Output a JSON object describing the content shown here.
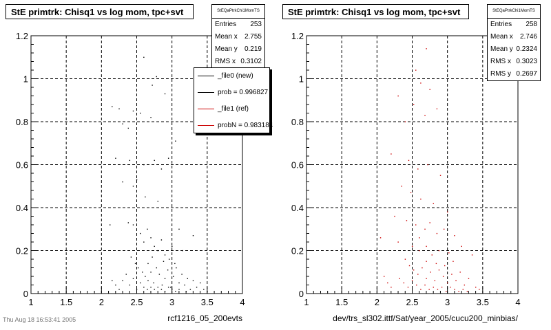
{
  "chart_data": [
    {
      "type": "scatter",
      "title": "StE primtrk: Chisq1 vs log mom, tpc+svt",
      "xlabel": "rcf1216_05_200evts",
      "ylabel": "",
      "xlim": [
        1,
        4
      ],
      "ylim": [
        0,
        1.2
      ],
      "x_ticks": [
        "1",
        "1.5",
        "2",
        "2.5",
        "3",
        "3.5",
        "4"
      ],
      "y_ticks": [
        "0",
        "0.2",
        "0.4",
        "0.6",
        "0.8",
        "1",
        "1.2"
      ],
      "grid": true,
      "marker_color": "#000000",
      "stats": {
        "name": "StEQaPtrkChi1MomTS",
        "rows": [
          {
            "label": "Entries",
            "value": "253"
          },
          {
            "label": "Mean x",
            "value": "2.755"
          },
          {
            "label": "Mean y",
            "value": "0.219"
          },
          {
            "label": "RMS x",
            "value": "0.3102"
          }
        ]
      },
      "legend": {
        "placement": "right-middle",
        "entries": [
          {
            "label": "_file0 (new)",
            "color": "#000000"
          },
          {
            "label": "prob = 0.996827",
            "color": "#000000"
          },
          {
            "label": "_file1 (ref)",
            "color": "#cc0000"
          },
          {
            "label": "probN = 0.983184",
            "color": "#cc0000"
          }
        ]
      },
      "points": [
        [
          2.6,
          1.1
        ],
        [
          2.72,
          0.97
        ],
        [
          2.78,
          1.01
        ],
        [
          2.9,
          0.93
        ],
        [
          2.15,
          0.87
        ],
        [
          2.25,
          0.86
        ],
        [
          2.45,
          0.85
        ],
        [
          2.55,
          0.84
        ],
        [
          2.7,
          0.82
        ],
        [
          2.3,
          0.79
        ],
        [
          2.38,
          0.77
        ],
        [
          2.2,
          0.63
        ],
        [
          2.4,
          0.62
        ],
        [
          2.6,
          0.6
        ],
        [
          2.75,
          0.62
        ],
        [
          2.85,
          0.58
        ],
        [
          2.95,
          0.63
        ],
        [
          2.3,
          0.52
        ],
        [
          2.45,
          0.5
        ],
        [
          2.5,
          0.53
        ],
        [
          2.62,
          0.45
        ],
        [
          2.8,
          0.43
        ],
        [
          3.05,
          0.71
        ],
        [
          2.12,
          0.32
        ],
        [
          2.38,
          0.33
        ],
        [
          2.45,
          0.32
        ],
        [
          2.55,
          0.28
        ],
        [
          2.6,
          0.24
        ],
        [
          2.65,
          0.3
        ],
        [
          2.7,
          0.26
        ],
        [
          2.75,
          0.22
        ],
        [
          2.8,
          0.2
        ],
        [
          2.85,
          0.25
        ],
        [
          2.9,
          0.18
        ],
        [
          3.0,
          0.22
        ],
        [
          3.1,
          0.3
        ],
        [
          3.15,
          0.2
        ],
        [
          3.3,
          0.27
        ],
        [
          2.42,
          0.17
        ],
        [
          2.48,
          0.14
        ],
        [
          2.52,
          0.12
        ],
        [
          2.58,
          0.1
        ],
        [
          2.62,
          0.08
        ],
        [
          2.66,
          0.06
        ],
        [
          2.7,
          0.1
        ],
        [
          2.74,
          0.05
        ],
        [
          2.78,
          0.12
        ],
        [
          2.82,
          0.09
        ],
        [
          2.86,
          0.04
        ],
        [
          2.9,
          0.07
        ],
        [
          2.94,
          0.11
        ],
        [
          2.98,
          0.03
        ],
        [
          3.02,
          0.08
        ],
        [
          3.06,
          0.12
        ],
        [
          3.1,
          0.05
        ],
        [
          3.14,
          0.09
        ],
        [
          3.18,
          0.04
        ],
        [
          3.22,
          0.07
        ],
        [
          3.26,
          0.02
        ],
        [
          3.3,
          0.06
        ],
        [
          2.3,
          0.06
        ],
        [
          2.35,
          0.09
        ],
        [
          2.4,
          0.04
        ],
        [
          2.45,
          0.07
        ],
        [
          2.5,
          0.02
        ],
        [
          2.55,
          0.05
        ],
        [
          2.6,
          0.03
        ],
        [
          2.65,
          0.02
        ],
        [
          2.7,
          0.03
        ],
        [
          2.75,
          0.02
        ],
        [
          2.8,
          0.03
        ],
        [
          2.85,
          0.02
        ],
        [
          2.9,
          0.01
        ],
        [
          2.95,
          0.03
        ],
        [
          3.0,
          0.02
        ],
        [
          3.05,
          0.01
        ],
        [
          3.1,
          0.02
        ],
        [
          3.2,
          0.01
        ],
        [
          3.35,
          0.03
        ],
        [
          3.4,
          0.05
        ],
        [
          3.45,
          0.02
        ],
        [
          2.25,
          0.02
        ],
        [
          2.2,
          0.04
        ],
        [
          2.15,
          0.06
        ],
        [
          3.5,
          0.01
        ],
        [
          2.66,
          0.14
        ],
        [
          2.72,
          0.17
        ],
        [
          2.88,
          0.15
        ],
        [
          2.96,
          0.16
        ],
        [
          3.04,
          0.14
        ]
      ]
    },
    {
      "type": "scatter",
      "title": "StE primtrk: Chisq1 vs log mom, tpc+svt",
      "xlabel": "dev/trs_sl302.ittf/Sat/year_2005/cucu200_minbias/",
      "ylabel": "",
      "xlim": [
        1,
        4
      ],
      "ylim": [
        0,
        1.2
      ],
      "x_ticks": [
        "1",
        "1.5",
        "2",
        "2.5",
        "3",
        "3.5",
        "4"
      ],
      "y_ticks": [
        "0",
        "0.2",
        "0.4",
        "0.6",
        "0.8",
        "1",
        "1.2"
      ],
      "grid": true,
      "marker_color": "#cc0000",
      "stats": {
        "name": "StEQaPtrkChi1MomTS",
        "rows": [
          {
            "label": "Entries",
            "value": "258"
          },
          {
            "label": "Mean x",
            "value": "2.746"
          },
          {
            "label": "Mean y",
            "value": "0.2324"
          },
          {
            "label": "RMS x",
            "value": "0.3023"
          },
          {
            "label": "RMS y",
            "value": "0.2697"
          }
        ]
      },
      "points": [
        [
          2.7,
          1.14
        ],
        [
          2.55,
          1.04
        ],
        [
          2.62,
          0.98
        ],
        [
          2.75,
          0.95
        ],
        [
          2.3,
          0.92
        ],
        [
          2.52,
          0.88
        ],
        [
          2.68,
          0.83
        ],
        [
          2.85,
          0.86
        ],
        [
          2.4,
          0.8
        ],
        [
          2.2,
          0.65
        ],
        [
          2.45,
          0.62
        ],
        [
          2.58,
          0.58
        ],
        [
          2.72,
          0.6
        ],
        [
          2.9,
          0.55
        ],
        [
          2.35,
          0.5
        ],
        [
          2.48,
          0.47
        ],
        [
          2.62,
          0.44
        ],
        [
          2.8,
          0.42
        ],
        [
          3.0,
          0.38
        ],
        [
          2.25,
          0.36
        ],
        [
          2.42,
          0.34
        ],
        [
          2.55,
          0.32
        ],
        [
          2.68,
          0.3
        ],
        [
          2.75,
          0.33
        ],
        [
          2.85,
          0.28
        ],
        [
          2.95,
          0.3
        ],
        [
          3.1,
          0.27
        ],
        [
          2.05,
          0.26
        ],
        [
          2.3,
          0.24
        ],
        [
          2.5,
          0.22
        ],
        [
          2.6,
          0.2
        ],
        [
          2.7,
          0.22
        ],
        [
          2.78,
          0.18
        ],
        [
          2.88,
          0.2
        ],
        [
          3.02,
          0.19
        ],
        [
          3.2,
          0.22
        ],
        [
          3.35,
          0.18
        ],
        [
          2.4,
          0.16
        ],
        [
          2.46,
          0.13
        ],
        [
          2.52,
          0.11
        ],
        [
          2.58,
          0.09
        ],
        [
          2.64,
          0.12
        ],
        [
          2.7,
          0.07
        ],
        [
          2.76,
          0.1
        ],
        [
          2.82,
          0.06
        ],
        [
          2.88,
          0.11
        ],
        [
          2.94,
          0.08
        ],
        [
          3.0,
          0.05
        ],
        [
          3.06,
          0.09
        ],
        [
          3.12,
          0.06
        ],
        [
          3.18,
          0.1
        ],
        [
          3.24,
          0.04
        ],
        [
          3.3,
          0.07
        ],
        [
          2.32,
          0.07
        ],
        [
          2.38,
          0.05
        ],
        [
          2.44,
          0.03
        ],
        [
          2.5,
          0.06
        ],
        [
          2.56,
          0.04
        ],
        [
          2.62,
          0.02
        ],
        [
          2.68,
          0.04
        ],
        [
          2.74,
          0.02
        ],
        [
          2.8,
          0.03
        ],
        [
          2.86,
          0.02
        ],
        [
          2.92,
          0.03
        ],
        [
          2.98,
          0.01
        ],
        [
          3.04,
          0.03
        ],
        [
          3.1,
          0.02
        ],
        [
          3.16,
          0.01
        ],
        [
          3.22,
          0.02
        ],
        [
          3.28,
          0.01
        ],
        [
          3.4,
          0.03
        ],
        [
          3.45,
          0.02
        ],
        [
          2.2,
          0.03
        ],
        [
          2.15,
          0.05
        ],
        [
          2.1,
          0.08
        ],
        [
          2.7,
          0.15
        ],
        [
          2.84,
          0.14
        ],
        [
          2.96,
          0.13
        ],
        [
          3.08,
          0.15
        ],
        [
          2.6,
          0.26
        ]
      ]
    }
  ],
  "footer_left": "Thu Aug 18 16:53:41 2005"
}
